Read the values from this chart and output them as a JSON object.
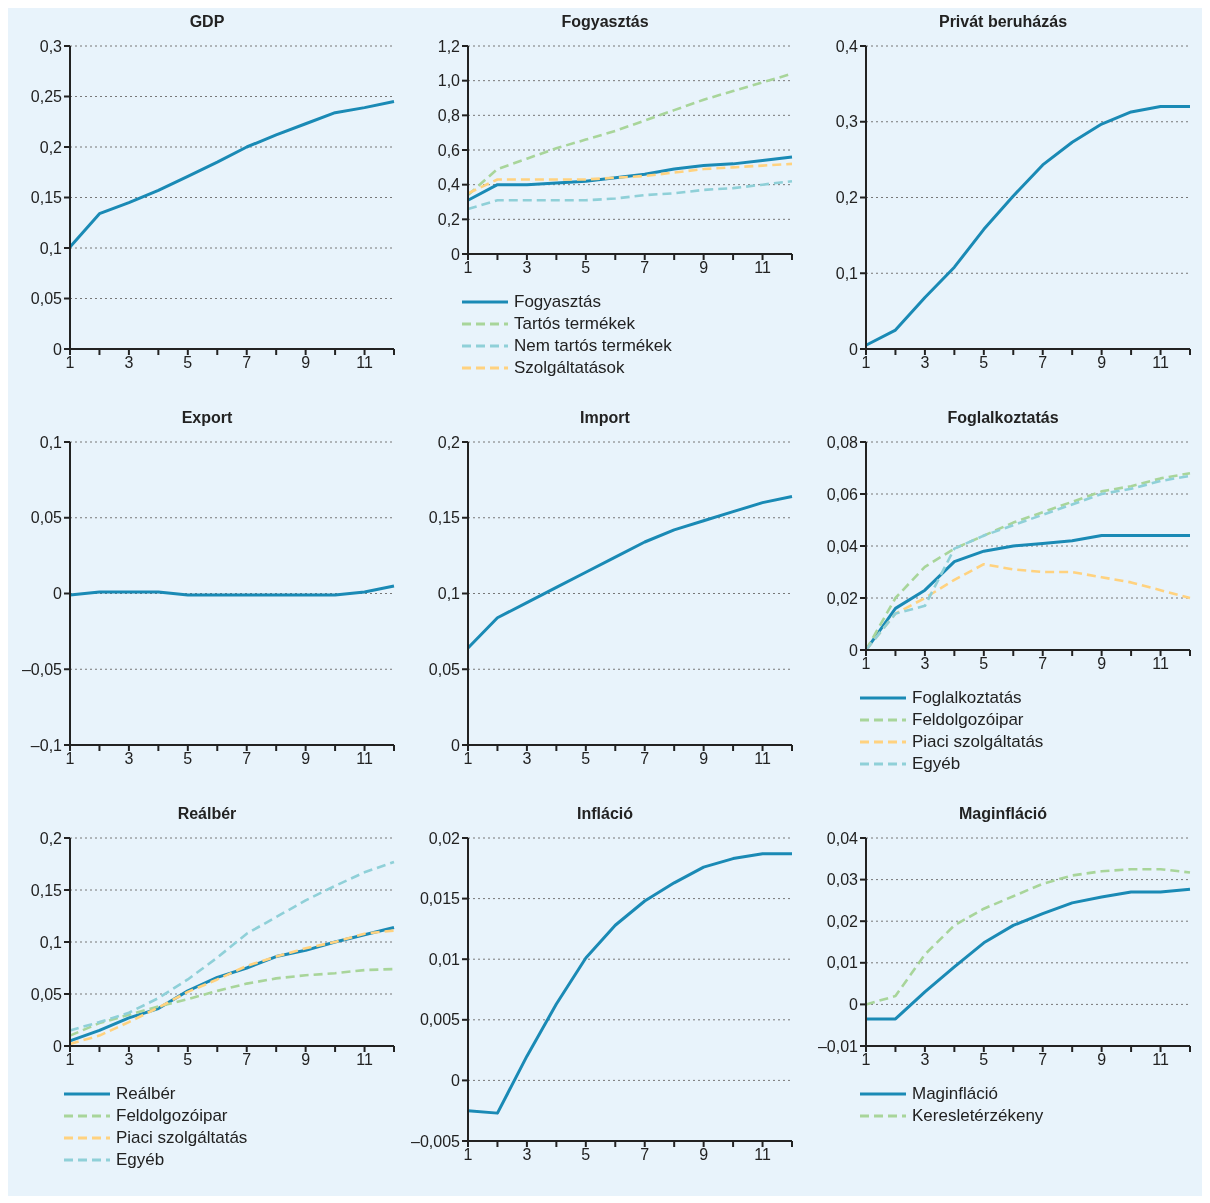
{
  "chart_data": [
    {
      "type": "line",
      "title": "GDP",
      "categories": [
        "1",
        null,
        "3",
        null,
        "5",
        null,
        "7",
        null,
        "9",
        null,
        "11",
        null
      ],
      "grid": "y",
      "ylim": [
        0,
        0.3
      ],
      "yticks": [
        {
          "value": 0,
          "label": "0"
        },
        {
          "value": 0.05,
          "label": "0,05"
        },
        {
          "value": 0.1,
          "label": "0,1"
        },
        {
          "value": 0.15,
          "label": "0,15"
        },
        {
          "value": 0.2,
          "label": "0,2"
        },
        {
          "value": 0.25,
          "label": "0,25"
        },
        {
          "value": 0.3,
          "label": "0,3"
        }
      ],
      "series": [
        {
          "color": "#1a8ab5",
          "line_style": "solid",
          "values": [
            0.101,
            0.134,
            0.145,
            0.157,
            0.171,
            0.185,
            0.2,
            0.212,
            0.223,
            0.234,
            0.239,
            0.245
          ]
        }
      ]
    },
    {
      "type": "line",
      "title": "Fogyasztás",
      "categories": [
        "1",
        null,
        "3",
        null,
        "5",
        null,
        "7",
        null,
        "9",
        null,
        "11",
        null
      ],
      "grid": "y",
      "legend": "bottom",
      "ylim": [
        0,
        1.2
      ],
      "yticks": [
        {
          "value": 0,
          "label": "0"
        },
        {
          "value": 0.2,
          "label": "0,2"
        },
        {
          "value": 0.4,
          "label": "0,4"
        },
        {
          "value": 0.6,
          "label": "0,6"
        },
        {
          "value": 0.8,
          "label": "0,8"
        },
        {
          "value": 1,
          "label": "1,0"
        },
        {
          "value": 1.2,
          "label": "1,2"
        }
      ],
      "series": [
        {
          "name": "Fogyasztás",
          "color": "#1a8ab5",
          "line_style": "solid",
          "values": [
            0.31,
            0.4,
            0.4,
            0.41,
            0.42,
            0.44,
            0.46,
            0.49,
            0.51,
            0.52,
            0.54,
            0.56
          ]
        },
        {
          "name": "Tartós termékek",
          "color": "#a8d59a",
          "line_style": "dashed",
          "values": [
            0.34,
            0.49,
            0.55,
            0.61,
            0.66,
            0.71,
            0.77,
            0.83,
            0.89,
            0.94,
            0.99,
            1.04
          ]
        },
        {
          "name": "Nem tartós termékek",
          "color": "#8fd0d8",
          "line_style": "dashed",
          "values": [
            0.26,
            0.31,
            0.31,
            0.31,
            0.31,
            0.32,
            0.34,
            0.35,
            0.37,
            0.38,
            0.4,
            0.42
          ]
        },
        {
          "name": "Szolgáltatások",
          "color": "#ffd27f",
          "line_style": "dashed",
          "values": [
            0.35,
            0.43,
            0.43,
            0.43,
            0.43,
            0.44,
            0.45,
            0.47,
            0.49,
            0.5,
            0.51,
            0.52
          ]
        }
      ]
    },
    {
      "type": "line",
      "title": "Privát beruházás",
      "categories": [
        "1",
        null,
        "3",
        null,
        "5",
        null,
        "7",
        null,
        "9",
        null,
        "11",
        null
      ],
      "grid": "y",
      "ylim": [
        0,
        0.4
      ],
      "yticks": [
        {
          "value": 0,
          "label": "0"
        },
        {
          "value": 0.1,
          "label": "0,1"
        },
        {
          "value": 0.2,
          "label": "0,2"
        },
        {
          "value": 0.3,
          "label": "0,3"
        },
        {
          "value": 0.4,
          "label": "0,4"
        }
      ],
      "series": [
        {
          "color": "#1a8ab5",
          "line_style": "solid",
          "values": [
            0.005,
            0.025,
            0.068,
            0.108,
            0.158,
            0.202,
            0.243,
            0.273,
            0.297,
            0.313,
            0.32,
            0.32
          ]
        }
      ]
    },
    {
      "type": "line",
      "title": "Export",
      "categories": [
        "1",
        null,
        "3",
        null,
        "5",
        null,
        "7",
        null,
        "9",
        null,
        "11",
        null
      ],
      "grid": "y",
      "ylim": [
        -0.1,
        0.1
      ],
      "yticks": [
        {
          "value": -0.1,
          "label": "–0,1"
        },
        {
          "value": -0.05,
          "label": "–0,05"
        },
        {
          "value": 0,
          "label": "0"
        },
        {
          "value": 0.05,
          "label": "0,05"
        },
        {
          "value": 0.1,
          "label": "0,1"
        }
      ],
      "series": [
        {
          "color": "#1a8ab5",
          "line_style": "solid",
          "values": [
            -0.001,
            0.001,
            0.001,
            0.001,
            -0.001,
            -0.001,
            -0.001,
            -0.001,
            -0.001,
            -0.001,
            0.001,
            0.005
          ]
        }
      ]
    },
    {
      "type": "line",
      "title": "Import",
      "categories": [
        "1",
        null,
        "3",
        null,
        "5",
        null,
        "7",
        null,
        "9",
        null,
        "11",
        null
      ],
      "grid": "y",
      "ylim": [
        0,
        0.2
      ],
      "yticks": [
        {
          "value": 0,
          "label": "0"
        },
        {
          "value": 0.05,
          "label": "0,05"
        },
        {
          "value": 0.1,
          "label": "0,1"
        },
        {
          "value": 0.15,
          "label": "0,15"
        },
        {
          "value": 0.2,
          "label": "0,2"
        }
      ],
      "series": [
        {
          "color": "#1a8ab5",
          "line_style": "solid",
          "values": [
            0.064,
            0.084,
            0.094,
            0.104,
            0.114,
            0.124,
            0.134,
            0.142,
            0.148,
            0.154,
            0.16,
            0.164
          ]
        }
      ]
    },
    {
      "type": "line",
      "title": "Foglalkoztatás",
      "categories": [
        "1",
        null,
        "3",
        null,
        "5",
        null,
        "7",
        null,
        "9",
        null,
        "11",
        null
      ],
      "grid": "y",
      "legend": "bottom",
      "ylim": [
        0,
        0.08
      ],
      "yticks": [
        {
          "value": 0,
          "label": "0"
        },
        {
          "value": 0.02,
          "label": "0,02"
        },
        {
          "value": 0.04,
          "label": "0,04"
        },
        {
          "value": 0.06,
          "label": "0,06"
        },
        {
          "value": 0.08,
          "label": "0,08"
        }
      ],
      "series": [
        {
          "name": "Foglalkoztatás",
          "color": "#1a8ab5",
          "line_style": "solid",
          "values": [
            0,
            0.016,
            0.023,
            0.034,
            0.038,
            0.04,
            0.041,
            0.042,
            0.044,
            0.044,
            0.044,
            0.044
          ]
        },
        {
          "name": "Feldolgozóipar",
          "color": "#a8d59a",
          "line_style": "dashed",
          "values": [
            0,
            0.02,
            0.032,
            0.039,
            0.044,
            0.049,
            0.053,
            0.057,
            0.061,
            0.063,
            0.066,
            0.068
          ]
        },
        {
          "name": "Piaci szolgáltatás",
          "color": "#ffd27f",
          "line_style": "dashed",
          "values": [
            0,
            0.014,
            0.02,
            0.027,
            0.033,
            0.031,
            0.03,
            0.03,
            0.028,
            0.026,
            0.023,
            0.02
          ]
        },
        {
          "name": "Egyéb",
          "color": "#8fd0d8",
          "line_style": "dashed",
          "values": [
            0,
            0.014,
            0.017,
            0.039,
            0.044,
            0.048,
            0.052,
            0.056,
            0.06,
            0.062,
            0.065,
            0.067
          ]
        }
      ]
    },
    {
      "type": "line",
      "title": "Reálbér",
      "categories": [
        "1",
        null,
        "3",
        null,
        "5",
        null,
        "7",
        null,
        "9",
        null,
        "11",
        null
      ],
      "grid": "y",
      "legend": "bottom",
      "ylim": [
        0,
        0.2
      ],
      "yticks": [
        {
          "value": 0,
          "label": "0"
        },
        {
          "value": 0.05,
          "label": "0,05"
        },
        {
          "value": 0.1,
          "label": "0,1"
        },
        {
          "value": 0.15,
          "label": "0,15"
        },
        {
          "value": 0.2,
          "label": "0,2"
        }
      ],
      "series": [
        {
          "name": "Reálbér",
          "color": "#1a8ab5",
          "line_style": "solid",
          "values": [
            0.005,
            0.015,
            0.027,
            0.036,
            0.053,
            0.066,
            0.075,
            0.086,
            0.092,
            0.1,
            0.107,
            0.114
          ]
        },
        {
          "name": "Feldolgozóipar",
          "color": "#a8d59a",
          "line_style": "dashed",
          "values": [
            0.01,
            0.022,
            0.03,
            0.038,
            0.045,
            0.053,
            0.06,
            0.065,
            0.068,
            0.07,
            0.073,
            0.074
          ]
        },
        {
          "name": "Piaci szolgáltatás",
          "color": "#ffd27f",
          "line_style": "dashed",
          "values": [
            0.002,
            0.01,
            0.023,
            0.037,
            0.052,
            0.064,
            0.077,
            0.086,
            0.094,
            0.1,
            0.108,
            0.111
          ]
        },
        {
          "name": "Egyéb",
          "color": "#8fd0d8",
          "line_style": "dashed",
          "values": [
            0.015,
            0.023,
            0.032,
            0.046,
            0.064,
            0.085,
            0.108,
            0.124,
            0.14,
            0.154,
            0.167,
            0.177
          ]
        }
      ]
    },
    {
      "type": "line",
      "title": "Infláció",
      "categories": [
        "1",
        null,
        "3",
        null,
        "5",
        null,
        "7",
        null,
        "9",
        null,
        "11",
        null
      ],
      "grid": "y",
      "ylim": [
        -0.005,
        0.02
      ],
      "yticks": [
        {
          "value": -0.005,
          "label": "–0,005"
        },
        {
          "value": 0,
          "label": "0"
        },
        {
          "value": 0.005,
          "label": "0,005"
        },
        {
          "value": 0.01,
          "label": "0,01"
        },
        {
          "value": 0.015,
          "label": "0,015"
        },
        {
          "value": 0.02,
          "label": "0,02"
        }
      ],
      "series": [
        {
          "color": "#1a8ab5",
          "line_style": "solid",
          "values": [
            -0.0025,
            -0.0027,
            0.002,
            0.0063,
            0.0101,
            0.0128,
            0.0148,
            0.0163,
            0.0176,
            0.0183,
            0.0187,
            0.0187
          ]
        }
      ]
    },
    {
      "type": "line",
      "title": "Maginfláció",
      "categories": [
        "1",
        null,
        "3",
        null,
        "5",
        null,
        "7",
        null,
        "9",
        null,
        "11",
        null
      ],
      "grid": "y",
      "legend": "bottom",
      "ylim": [
        -0.01,
        0.04
      ],
      "yticks": [
        {
          "value": -0.01,
          "label": "–0,01"
        },
        {
          "value": 0,
          "label": "0"
        },
        {
          "value": 0.01,
          "label": "0,01"
        },
        {
          "value": 0.02,
          "label": "0,02"
        },
        {
          "value": 0.03,
          "label": "0,03"
        },
        {
          "value": 0.04,
          "label": "0,04"
        }
      ],
      "series": [
        {
          "name": "Maginfláció",
          "color": "#1a8ab5",
          "line_style": "solid",
          "values": [
            -0.0035,
            -0.0035,
            0.003,
            0.009,
            0.0148,
            0.019,
            0.0218,
            0.0244,
            0.0258,
            0.027,
            0.027,
            0.0277
          ]
        },
        {
          "name": "Keresletérzékeny",
          "color": "#a8d59a",
          "line_style": "dashed",
          "values": [
            0,
            0.002,
            0.012,
            0.019,
            0.023,
            0.026,
            0.029,
            0.031,
            0.032,
            0.0325,
            0.0325,
            0.0317
          ]
        }
      ]
    }
  ]
}
